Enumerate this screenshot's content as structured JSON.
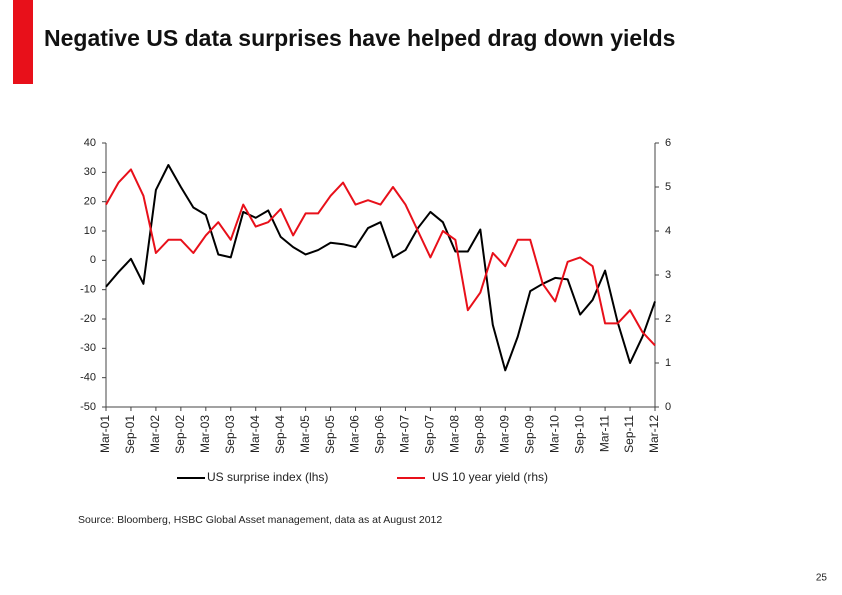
{
  "chart_data": {
    "type": "line",
    "title": "Negative US data surprises have helped drag down yields",
    "source": "Source: Bloomberg, HSBC Global Asset management,  data as at August 2012",
    "categories": [
      "Mar-01",
      null,
      "Sep-01",
      null,
      "Mar-02",
      null,
      "Sep-02",
      null,
      "Mar-03",
      null,
      "Sep-03",
      null,
      "Mar-04",
      null,
      "Sep-04",
      null,
      "Mar-05",
      null,
      "Sep-05",
      null,
      "Mar-06",
      null,
      "Sep-06",
      null,
      "Mar-07",
      null,
      "Sep-07",
      null,
      "Mar-08",
      null,
      "Sep-08",
      null,
      "Mar-09",
      null,
      "Sep-09",
      null,
      "Mar-10",
      null,
      "Sep-10",
      null,
      "Mar-11",
      null,
      "Sep-11",
      null,
      "Mar-12"
    ],
    "series": [
      {
        "name": "US surprise index (lhs)",
        "color": "#000000",
        "values": [
          -9,
          -4,
          0.5,
          -8,
          24,
          32.5,
          25,
          18,
          15.5,
          2,
          1,
          16.5,
          14.5,
          17,
          8,
          4.5,
          2,
          3.5,
          6,
          5.5,
          4.5,
          11,
          13,
          1,
          3.5,
          11,
          16.5,
          13,
          3,
          3,
          10.5,
          -22,
          -37.5,
          -26,
          -10.5,
          -8,
          -6,
          -6.5,
          -18.5,
          -13.5,
          -3.5,
          -21,
          -35,
          -26,
          -14
        ]
      },
      {
        "name": "US 10 year yield (rhs)",
        "color": "#e8101a",
        "axis": "y2",
        "values": [
          4.6,
          5.1,
          5.4,
          4.8,
          3.5,
          3.8,
          3.8,
          3.5,
          3.9,
          4.2,
          3.8,
          4.6,
          4.1,
          4.2,
          4.5,
          3.9,
          4.4,
          4.4,
          4.8,
          5.1,
          4.6,
          4.7,
          4.6,
          5.0,
          4.6,
          4.0,
          3.4,
          4.0,
          3.8,
          2.2,
          2.6,
          3.5,
          3.2,
          3.8,
          3.8,
          2.8,
          2.4,
          3.3,
          3.4,
          3.2,
          1.9,
          1.9,
          2.2,
          1.7,
          1.4
        ]
      }
    ],
    "ylim": [
      -50,
      40
    ],
    "yticks": [
      -50,
      -40,
      -30,
      -20,
      -10,
      0,
      10,
      20,
      30,
      40
    ],
    "y2lim": [
      0,
      6
    ],
    "y2ticks": [
      0,
      1,
      2,
      3,
      4,
      5,
      6
    ],
    "grid": false
  },
  "slide": {
    "page_number": 25
  }
}
